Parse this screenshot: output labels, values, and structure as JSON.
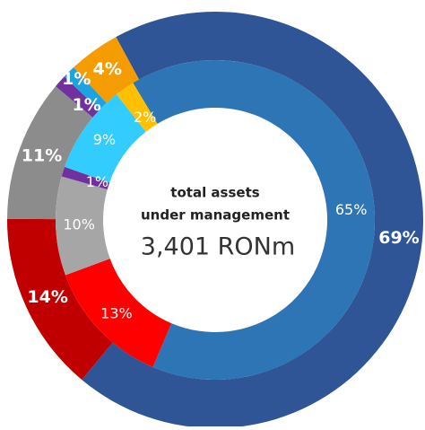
{
  "chart_data": [
    {
      "type": "donut",
      "values": [
        69,
        14,
        11,
        1,
        1,
        4
      ],
      "value_labels": [
        "69%",
        "14%",
        "11%",
        "1%",
        "1%",
        "4%"
      ],
      "colors": [
        "#2f5597",
        "#c00000",
        "#8c8c8c",
        "#7030a0",
        "#1fa3e0",
        "#f59c00"
      ]
    },
    {
      "type": "donut",
      "values": [
        65,
        13,
        10,
        1,
        9,
        2
      ],
      "value_labels": [
        "65%",
        "13%",
        "10%",
        "1%",
        "9%",
        "2%"
      ],
      "colors": [
        "#2e75b6",
        "#ff0000",
        "#a6a6a6",
        "#7030a0",
        "#33ccff",
        "#ffc000"
      ]
    }
  ],
  "center": {
    "line1": "total assets",
    "line2": "under management",
    "total": "3,401 RONm"
  }
}
